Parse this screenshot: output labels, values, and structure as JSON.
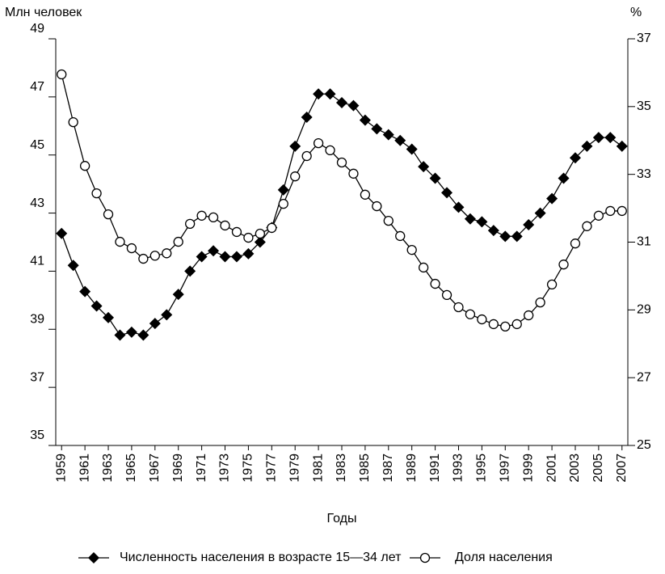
{
  "chart_data": {
    "type": "line",
    "y_label": "Млн человек",
    "y2_label": "%",
    "x_label": "Годы",
    "x": [
      1959,
      1960,
      1961,
      1962,
      1963,
      1964,
      1965,
      1966,
      1967,
      1968,
      1969,
      1970,
      1971,
      1972,
      1973,
      1974,
      1975,
      1976,
      1977,
      1978,
      1979,
      1980,
      1981,
      1982,
      1983,
      1984,
      1985,
      1986,
      1987,
      1988,
      1989,
      1990,
      1991,
      1992,
      1993,
      1994,
      1995,
      1996,
      1997,
      1998,
      1999,
      2000,
      2001,
      2002,
      2003,
      2004,
      2005,
      2006,
      2007
    ],
    "series": [
      {
        "name": "Численность населения в возрасте 15—34 лет",
        "color": "#000000",
        "marker": "diamond",
        "axis": "y",
        "values": [
          42.3,
          41.2,
          40.3,
          39.8,
          39.4,
          38.8,
          38.9,
          38.8,
          39.2,
          39.5,
          40.2,
          41.0,
          41.5,
          41.7,
          41.5,
          41.5,
          41.6,
          42.0,
          42.5,
          43.8,
          45.3,
          46.3,
          47.1,
          47.1,
          46.8,
          46.7,
          46.2,
          45.9,
          45.7,
          45.5,
          45.2,
          44.6,
          44.2,
          43.7,
          43.2,
          42.8,
          42.7,
          42.4,
          42.2,
          42.2,
          42.6,
          43.0,
          43.5,
          44.2,
          44.9,
          45.3,
          45.6,
          45.6,
          45.3
        ]
      },
      {
        "name": "Доля населения",
        "color": "#000000",
        "marker": "circle",
        "axis": "y2",
        "values": [
          35.95,
          34.54,
          33.25,
          32.44,
          31.82,
          31.01,
          30.82,
          30.51,
          30.6,
          30.67,
          31.01,
          31.54,
          31.78,
          31.73,
          31.49,
          31.3,
          31.13,
          31.25,
          31.42,
          32.13,
          32.94,
          33.54,
          33.92,
          33.71,
          33.35,
          33.02,
          32.4,
          32.06,
          31.63,
          31.18,
          30.77,
          30.25,
          29.77,
          29.44,
          29.08,
          28.87,
          28.72,
          28.58,
          28.51,
          28.58,
          28.84,
          29.22,
          29.75,
          30.34,
          30.96,
          31.47,
          31.78,
          31.92,
          31.92
        ]
      }
    ],
    "xlim": [
      1958.5,
      2007.5
    ],
    "xticks": [
      1959,
      1961,
      1963,
      1965,
      1967,
      1969,
      1971,
      1973,
      1975,
      1977,
      1979,
      1981,
      1983,
      1985,
      1987,
      1989,
      1991,
      1993,
      1995,
      1997,
      1999,
      2001,
      2003,
      2005,
      2007
    ],
    "ylim": [
      35,
      49
    ],
    "yticks": [
      35,
      37,
      39,
      41,
      43,
      45,
      47,
      49
    ],
    "y2lim": [
      25,
      37
    ],
    "y2ticks": [
      25,
      27,
      29,
      31,
      33,
      35,
      37
    ],
    "grid": false,
    "legend": "bottom"
  }
}
